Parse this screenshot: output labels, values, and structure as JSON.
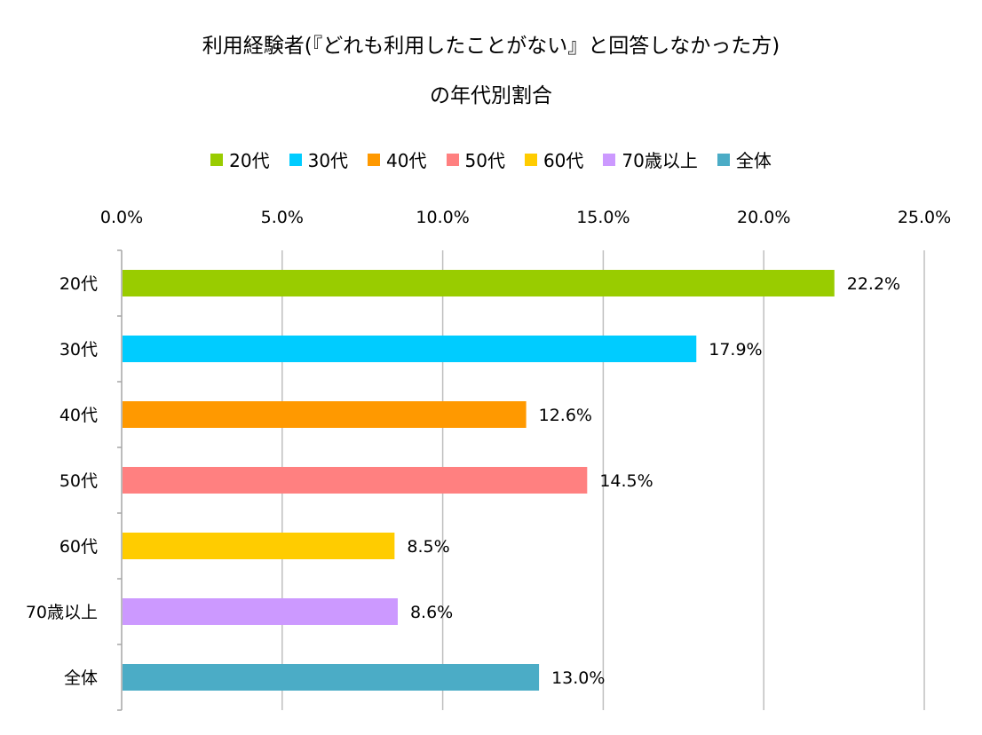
{
  "chart_data": {
    "type": "bar",
    "orientation": "horizontal",
    "title_lines": [
      "利用経験者(『どれも利用したことがない』と回答しなかった方)",
      "の年代別割合"
    ],
    "categories": [
      "20代",
      "30代",
      "40代",
      "50代",
      "60代",
      "70歳以上",
      "全体"
    ],
    "values": [
      22.2,
      17.9,
      12.6,
      14.5,
      8.5,
      8.6,
      13.0
    ],
    "value_labels": [
      "22.2%",
      "17.9%",
      "12.6%",
      "14.5%",
      "8.5%",
      "8.6%",
      "13.0%"
    ],
    "colors": [
      "#99CC00",
      "#00CCFF",
      "#FF9900",
      "#FF8080",
      "#FFCC00",
      "#CC99FF",
      "#4BACC6"
    ],
    "xlim": [
      0,
      25
    ],
    "x_ticks": [
      0,
      5,
      10,
      15,
      20,
      25
    ],
    "x_tick_labels": [
      "0.0%",
      "5.0%",
      "10.0%",
      "15.0%",
      "20.0%",
      "25.0%"
    ],
    "x_axis_position": "top",
    "grid": true,
    "legend_position": "top",
    "legend": [
      "20代",
      "30代",
      "40代",
      "50代",
      "60代",
      "70歳以上",
      "全体"
    ]
  }
}
